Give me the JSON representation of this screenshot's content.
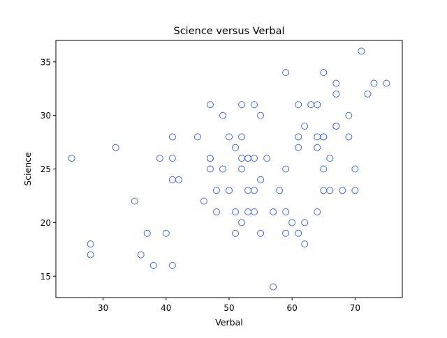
{
  "chart_data": {
    "type": "scatter",
    "title": "Science versus Verbal",
    "xlabel": "Verbal",
    "ylabel": "Science",
    "xlim": [
      22.5,
      77.5
    ],
    "ylim": [
      13,
      37
    ],
    "xticks": [
      30,
      40,
      50,
      60,
      70
    ],
    "yticks": [
      15,
      20,
      25,
      30,
      35
    ],
    "grid": false,
    "marker": "open-circle",
    "marker_color": "#4169e1",
    "points": [
      [
        25,
        26
      ],
      [
        28,
        18
      ],
      [
        28,
        17
      ],
      [
        32,
        27
      ],
      [
        35,
        22
      ],
      [
        36,
        17
      ],
      [
        37,
        19
      ],
      [
        38,
        16
      ],
      [
        39,
        26
      ],
      [
        40,
        19
      ],
      [
        41,
        28
      ],
      [
        41,
        26
      ],
      [
        41,
        24
      ],
      [
        41,
        16
      ],
      [
        42,
        24
      ],
      [
        45,
        28
      ],
      [
        46,
        22
      ],
      [
        47,
        31
      ],
      [
        47,
        26
      ],
      [
        47,
        26
      ],
      [
        47,
        25
      ],
      [
        48,
        23
      ],
      [
        48,
        21
      ],
      [
        49,
        30
      ],
      [
        49,
        25
      ],
      [
        50,
        28
      ],
      [
        50,
        23
      ],
      [
        51,
        27
      ],
      [
        51,
        21
      ],
      [
        51,
        19
      ],
      [
        52,
        31
      ],
      [
        52,
        28
      ],
      [
        52,
        26
      ],
      [
        52,
        25
      ],
      [
        52,
        20
      ],
      [
        53,
        26
      ],
      [
        53,
        26
      ],
      [
        53,
        23
      ],
      [
        53,
        21
      ],
      [
        54,
        31
      ],
      [
        54,
        26
      ],
      [
        54,
        23
      ],
      [
        54,
        21
      ],
      [
        55,
        30
      ],
      [
        55,
        24
      ],
      [
        55,
        19
      ],
      [
        56,
        26
      ],
      [
        57,
        21
      ],
      [
        57,
        14
      ],
      [
        58,
        23
      ],
      [
        59,
        34
      ],
      [
        59,
        25
      ],
      [
        59,
        21
      ],
      [
        59,
        19
      ],
      [
        60,
        20
      ],
      [
        61,
        31
      ],
      [
        61,
        28
      ],
      [
        61,
        27
      ],
      [
        61,
        19
      ],
      [
        62,
        29
      ],
      [
        62,
        20
      ],
      [
        62,
        18
      ],
      [
        63,
        31
      ],
      [
        64,
        31
      ],
      [
        64,
        28
      ],
      [
        64,
        27
      ],
      [
        64,
        21
      ],
      [
        65,
        34
      ],
      [
        65,
        28
      ],
      [
        65,
        28
      ],
      [
        65,
        25
      ],
      [
        65,
        23
      ],
      [
        66,
        26
      ],
      [
        66,
        23
      ],
      [
        67,
        33
      ],
      [
        67,
        32
      ],
      [
        67,
        29
      ],
      [
        67,
        29
      ],
      [
        68,
        23
      ],
      [
        69,
        30
      ],
      [
        69,
        28
      ],
      [
        70,
        25
      ],
      [
        70,
        23
      ],
      [
        71,
        36
      ],
      [
        72,
        32
      ],
      [
        73,
        33
      ],
      [
        75,
        33
      ]
    ]
  }
}
